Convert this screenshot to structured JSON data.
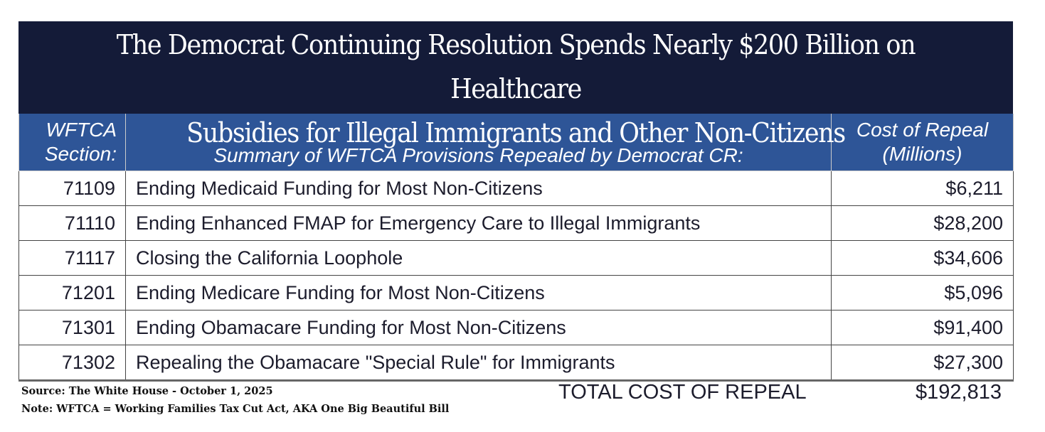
{
  "title": {
    "line1": "The Democrat Continuing Resolution Spends Nearly $200 Billion on Healthcare",
    "line2": "Subsidies for Illegal Immigrants and Other Non-Citizens"
  },
  "headers": {
    "section": "WFTCA Section:",
    "summary": "Summary of WFTCA Provisions Repealed by Democrat CR:",
    "cost": "Cost of Repeal (Millions)"
  },
  "rows": [
    {
      "section": "71109",
      "summary": "Ending Medicaid Funding for Most Non-Citizens",
      "cost": "$6,211"
    },
    {
      "section": "71110",
      "summary": "Ending Enhanced FMAP for Emergency Care to Illegal Immigrants",
      "cost": "$28,200"
    },
    {
      "section": "71117",
      "summary": "Closing the California Loophole",
      "cost": "$34,606"
    },
    {
      "section": "71201",
      "summary": "Ending Medicare Funding for Most Non-Citizens",
      "cost": "$5,096"
    },
    {
      "section": "71301",
      "summary": "Ending Obamacare Funding for Most Non-Citizens",
      "cost": "$91,400"
    },
    {
      "section": "71302",
      "summary": "Repealing the Obamacare \"Special Rule\" for Immigrants",
      "cost": "$27,300"
    }
  ],
  "total": {
    "label": "TOTAL COST OF REPEAL",
    "value": "$192,813"
  },
  "source": "Source: The White House - October 1, 2025",
  "note": "Note: WFTCA = Working Families Tax Cut Act, AKA One Big Beautiful Bill"
}
